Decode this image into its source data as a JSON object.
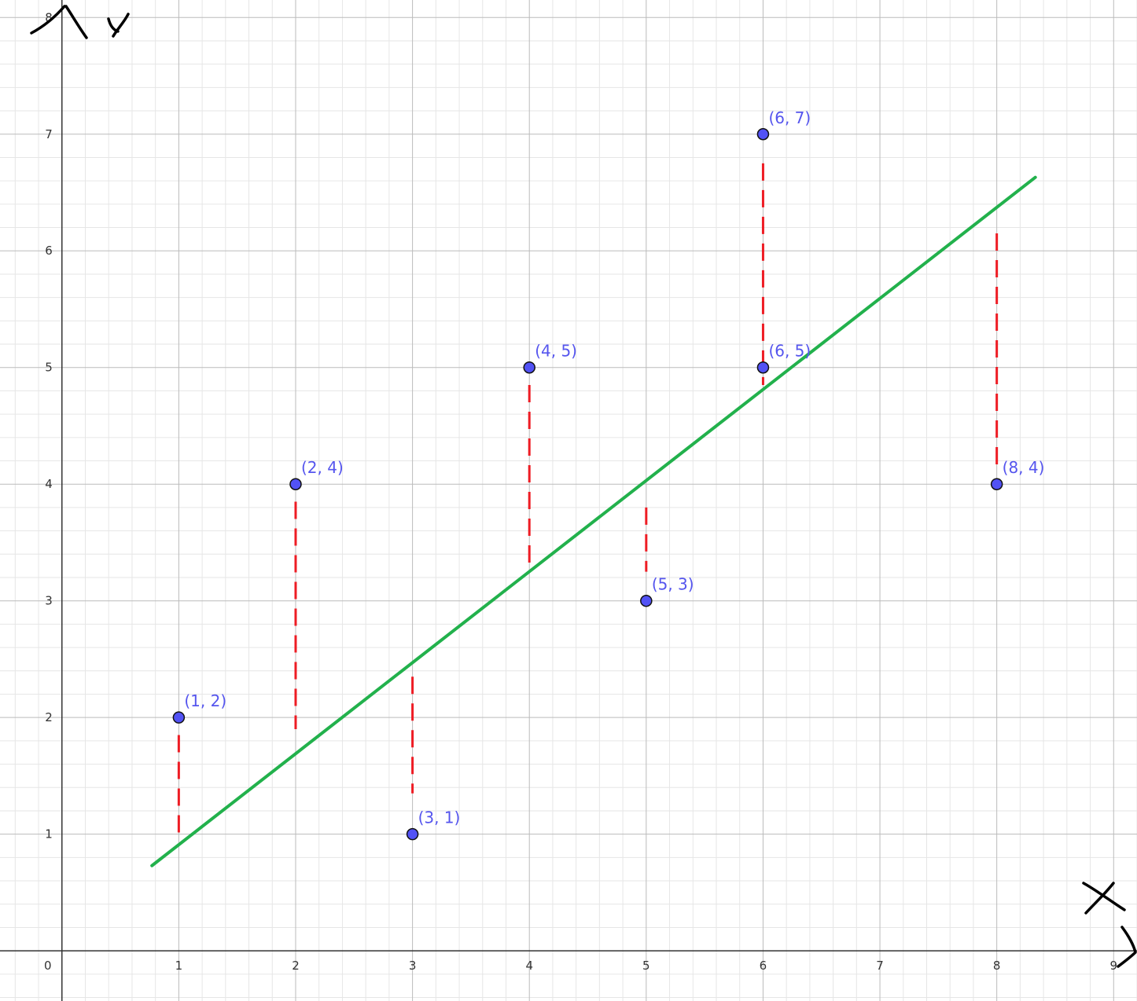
{
  "chart_data": {
    "type": "scatter",
    "title": "",
    "xlabel": "X",
    "ylabel": "Y",
    "xlim": [
      -0.53,
      9.2
    ],
    "ylim": [
      -0.43,
      8.15
    ],
    "grid": true,
    "x_ticks": [
      "0",
      "1",
      "2",
      "3",
      "4",
      "5",
      "6",
      "7",
      "8",
      "9"
    ],
    "y_ticks": [
      "1",
      "2",
      "3",
      "4",
      "5",
      "6",
      "7",
      "8"
    ],
    "points": [
      {
        "x": 1,
        "y": 2,
        "label": "(1, 2)"
      },
      {
        "x": 2,
        "y": 4,
        "label": "(2, 4)"
      },
      {
        "x": 3,
        "y": 1,
        "label": "(3, 1)"
      },
      {
        "x": 4,
        "y": 5,
        "label": "(4, 5)"
      },
      {
        "x": 5,
        "y": 3,
        "label": "(5, 3)"
      },
      {
        "x": 6,
        "y": 7,
        "label": "(6, 7)"
      },
      {
        "x": 6,
        "y": 5,
        "label": "(6, 5)"
      },
      {
        "x": 8,
        "y": 4,
        "label": "(8, 4)"
      }
    ],
    "regression_line": {
      "x1": 0.77,
      "y1": 0.73,
      "x2": 8.33,
      "y2": 6.63,
      "color": "#22b14c"
    },
    "residuals": [
      {
        "x": 1,
        "y_from": 1.85,
        "y_to": 1.0
      },
      {
        "x": 2,
        "y_from": 3.85,
        "y_to": 1.9
      },
      {
        "x": 3,
        "y_from": 2.35,
        "y_to": 1.35
      },
      {
        "x": 4,
        "y_from": 4.85,
        "y_to": 3.3
      },
      {
        "x": 5,
        "y_from": 3.8,
        "y_to": 3.25
      },
      {
        "x": 6,
        "y_from": 6.75,
        "y_to": 4.85
      },
      {
        "x": 8,
        "y_from": 6.15,
        "y_to": 4.1
      }
    ],
    "colors": {
      "point_fill": "#5252f5",
      "label": "#5555ee",
      "residual": "#ee1c24",
      "major_grid": "#bbbbbb",
      "minor_grid": "#e6e6e6",
      "axis": "#333333"
    }
  }
}
